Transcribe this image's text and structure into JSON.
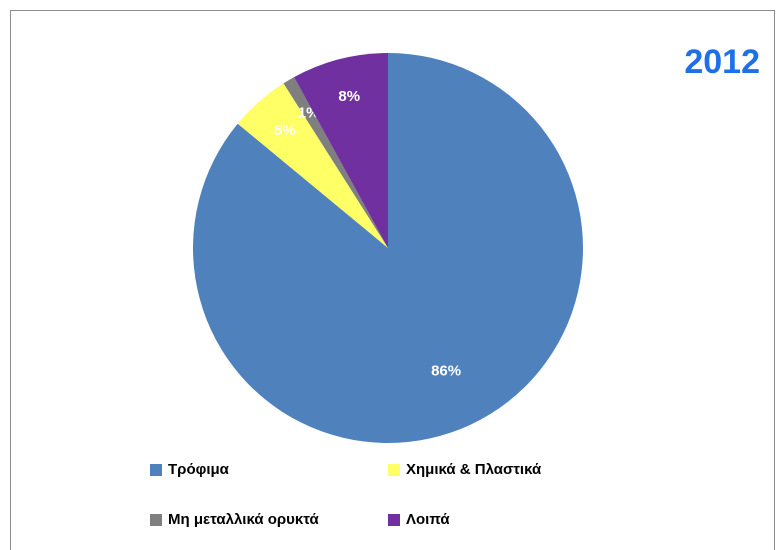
{
  "chart_data": {
    "type": "pie",
    "title": "2012",
    "categories": [
      "Τρόφιμα",
      "Χημικά & Πλαστικά",
      "Μη μεταλλικά ορυκτά",
      "Λοιπά"
    ],
    "values": [
      86,
      5,
      1,
      8
    ],
    "value_labels": [
      "86%",
      "5%",
      "1%",
      "8%"
    ],
    "colors": [
      "#4f81bd",
      "#ffff66",
      "#7f7f7f",
      "#7030a0"
    ],
    "legend": "bottom"
  }
}
